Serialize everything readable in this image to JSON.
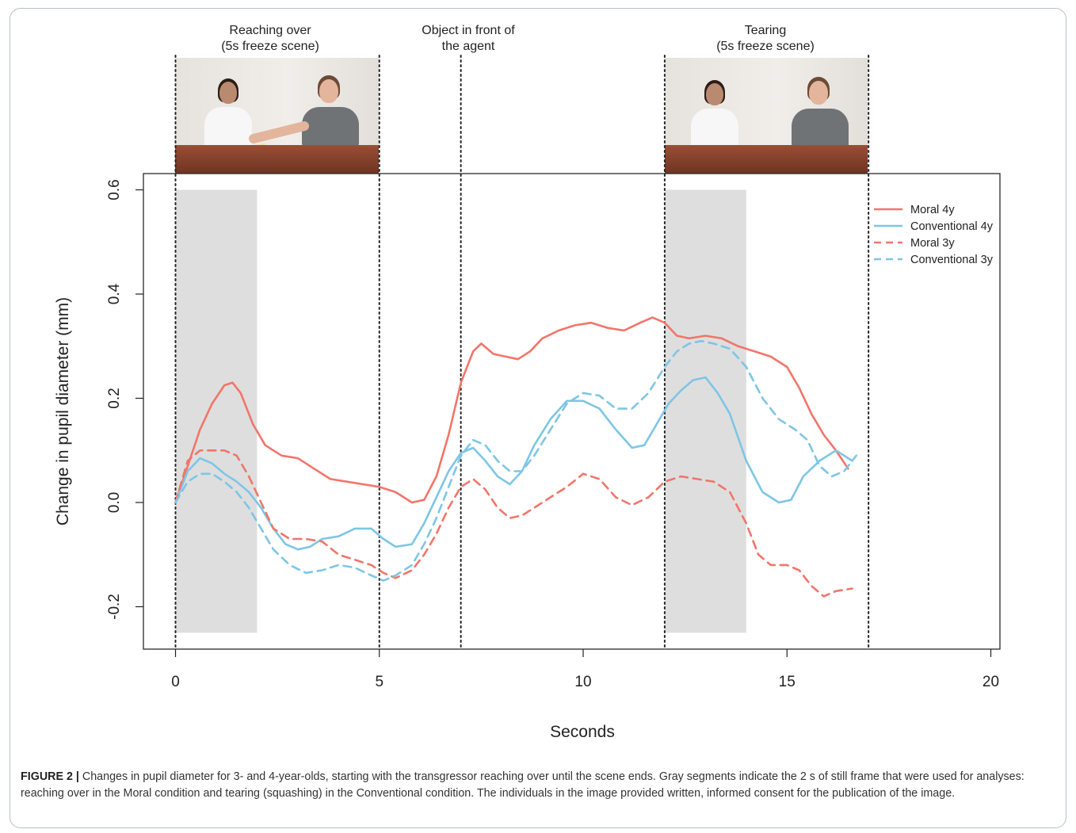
{
  "panels": [
    {
      "line1": "Reaching over",
      "line2": "(5s freeze scene)"
    },
    {
      "line1": "Object in front of",
      "line2": "the agent"
    },
    {
      "line1": "Tearing",
      "line2": "(5s freeze scene)"
    }
  ],
  "caption": {
    "label": "FIGURE 2 |",
    "text": "Changes in pupil diameter for 3- and 4-year-olds, starting with the transgressor reaching over until the scene ends. Gray segments indicate the 2 s of still frame that were used for analyses: reaching over in the Moral condition and tearing (squashing) in the Conventional condition. The individuals in the image provided written, informed consent for the publication of the image."
  },
  "chart_data": {
    "type": "line",
    "xlabel": "Seconds",
    "ylabel": "Change in pupil diameter (mm)",
    "xlim": [
      -0.8,
      20.6
    ],
    "ylim": [
      -0.28,
      0.635
    ],
    "xticks": [
      0,
      5,
      10,
      15,
      20
    ],
    "xtick_labels": [
      "0",
      "5",
      "10",
      "15",
      "20"
    ],
    "yticks": [
      -0.2,
      0.0,
      0.2,
      0.4,
      0.6
    ],
    "ytick_labels": [
      "-0.2",
      "0.0",
      "0.2",
      "0.4",
      "0.6"
    ],
    "grid": false,
    "legend_position": "top-right",
    "shaded_regions": [
      {
        "x0": 0,
        "x1": 2,
        "y0": -0.25,
        "y1": 0.6,
        "color": "#dedede"
      },
      {
        "x0": 12,
        "x1": 14,
        "y0": -0.25,
        "y1": 0.6,
        "color": "#dedede"
      }
    ],
    "vlines": [
      0,
      5,
      7,
      12,
      17
    ],
    "series": [
      {
        "name": "Moral 4y",
        "color": "#f2756a",
        "dash": false,
        "x": [
          0,
          0.3,
          0.6,
          0.9,
          1.2,
          1.4,
          1.6,
          1.9,
          2.2,
          2.6,
          3.0,
          3.4,
          3.8,
          4.2,
          4.6,
          5.0,
          5.4,
          5.8,
          6.1,
          6.4,
          6.7,
          7.0,
          7.3,
          7.5,
          7.8,
          8.1,
          8.4,
          8.7,
          9.0,
          9.4,
          9.8,
          10.2,
          10.6,
          11.0,
          11.4,
          11.7,
          12.0,
          12.3,
          12.6,
          13.0,
          13.4,
          13.8,
          14.2,
          14.6,
          15.0,
          15.3,
          15.6,
          15.9,
          16.2,
          16.5
        ],
        "y": [
          0.0,
          0.07,
          0.14,
          0.19,
          0.225,
          0.23,
          0.21,
          0.15,
          0.11,
          0.09,
          0.085,
          0.065,
          0.045,
          0.04,
          0.035,
          0.03,
          0.02,
          0.0,
          0.005,
          0.05,
          0.13,
          0.23,
          0.29,
          0.305,
          0.285,
          0.28,
          0.275,
          0.29,
          0.315,
          0.33,
          0.34,
          0.345,
          0.335,
          0.33,
          0.345,
          0.355,
          0.345,
          0.32,
          0.315,
          0.32,
          0.315,
          0.3,
          0.29,
          0.28,
          0.26,
          0.22,
          0.17,
          0.13,
          0.1,
          0.065
        ]
      },
      {
        "name": "Conventional 4y",
        "color": "#7dc6e6",
        "dash": false,
        "x": [
          0,
          0.3,
          0.6,
          0.9,
          1.2,
          1.5,
          1.8,
          2.1,
          2.4,
          2.7,
          3.0,
          3.3,
          3.6,
          4.0,
          4.4,
          4.8,
          5.1,
          5.4,
          5.8,
          6.1,
          6.4,
          6.7,
          7.0,
          7.3,
          7.6,
          7.9,
          8.2,
          8.5,
          8.8,
          9.2,
          9.6,
          10.0,
          10.4,
          10.8,
          11.2,
          11.5,
          11.8,
          12.1,
          12.4,
          12.7,
          13.0,
          13.3,
          13.6,
          14.0,
          14.4,
          14.8,
          15.1,
          15.4,
          15.8,
          16.2,
          16.6
        ],
        "y": [
          0.0,
          0.06,
          0.085,
          0.075,
          0.055,
          0.04,
          0.02,
          -0.01,
          -0.05,
          -0.08,
          -0.09,
          -0.085,
          -0.07,
          -0.065,
          -0.05,
          -0.05,
          -0.07,
          -0.085,
          -0.08,
          -0.04,
          0.01,
          0.06,
          0.095,
          0.105,
          0.08,
          0.05,
          0.035,
          0.06,
          0.11,
          0.16,
          0.195,
          0.195,
          0.18,
          0.14,
          0.105,
          0.11,
          0.15,
          0.19,
          0.215,
          0.235,
          0.24,
          0.21,
          0.17,
          0.08,
          0.02,
          0.0,
          0.005,
          0.05,
          0.08,
          0.1,
          0.08
        ]
      },
      {
        "name": "Moral 3y",
        "color": "#f2756a",
        "dash": true,
        "x": [
          0,
          0.3,
          0.6,
          0.9,
          1.2,
          1.5,
          1.8,
          2.1,
          2.4,
          2.8,
          3.2,
          3.6,
          4.0,
          4.4,
          4.8,
          5.1,
          5.4,
          5.8,
          6.1,
          6.4,
          6.7,
          7.0,
          7.3,
          7.6,
          7.9,
          8.2,
          8.5,
          8.8,
          9.2,
          9.6,
          10.0,
          10.4,
          10.8,
          11.2,
          11.6,
          12.0,
          12.4,
          12.8,
          13.2,
          13.6,
          14.0,
          14.3,
          14.6,
          15.0,
          15.3,
          15.6,
          15.9,
          16.2,
          16.6
        ],
        "y": [
          0.0,
          0.08,
          0.1,
          0.1,
          0.1,
          0.09,
          0.05,
          0.0,
          -0.05,
          -0.07,
          -0.07,
          -0.075,
          -0.1,
          -0.11,
          -0.12,
          -0.135,
          -0.145,
          -0.13,
          -0.1,
          -0.06,
          -0.01,
          0.03,
          0.045,
          0.025,
          -0.01,
          -0.03,
          -0.025,
          -0.01,
          0.01,
          0.03,
          0.055,
          0.045,
          0.01,
          -0.005,
          0.01,
          0.04,
          0.05,
          0.045,
          0.04,
          0.02,
          -0.04,
          -0.1,
          -0.12,
          -0.12,
          -0.13,
          -0.16,
          -0.18,
          -0.17,
          -0.165
        ]
      },
      {
        "name": "Conventional 3y",
        "color": "#7dc6e6",
        "dash": true,
        "x": [
          0,
          0.3,
          0.6,
          0.9,
          1.2,
          1.5,
          1.8,
          2.1,
          2.4,
          2.8,
          3.2,
          3.6,
          4.0,
          4.4,
          4.8,
          5.1,
          5.4,
          5.8,
          6.1,
          6.4,
          6.7,
          7.0,
          7.3,
          7.6,
          7.9,
          8.2,
          8.5,
          8.8,
          9.2,
          9.6,
          10.0,
          10.4,
          10.8,
          11.2,
          11.6,
          12.0,
          12.3,
          12.6,
          12.9,
          13.2,
          13.6,
          14.0,
          14.4,
          14.8,
          15.2,
          15.5,
          15.8,
          16.1,
          16.4,
          16.7
        ],
        "y": [
          0.0,
          0.04,
          0.055,
          0.055,
          0.04,
          0.02,
          -0.01,
          -0.05,
          -0.09,
          -0.12,
          -0.135,
          -0.13,
          -0.12,
          -0.125,
          -0.14,
          -0.15,
          -0.14,
          -0.12,
          -0.08,
          -0.03,
          0.03,
          0.09,
          0.12,
          0.11,
          0.08,
          0.06,
          0.06,
          0.09,
          0.14,
          0.19,
          0.21,
          0.205,
          0.18,
          0.18,
          0.21,
          0.26,
          0.29,
          0.305,
          0.31,
          0.305,
          0.295,
          0.26,
          0.2,
          0.16,
          0.14,
          0.12,
          0.07,
          0.05,
          0.06,
          0.09
        ]
      }
    ]
  }
}
